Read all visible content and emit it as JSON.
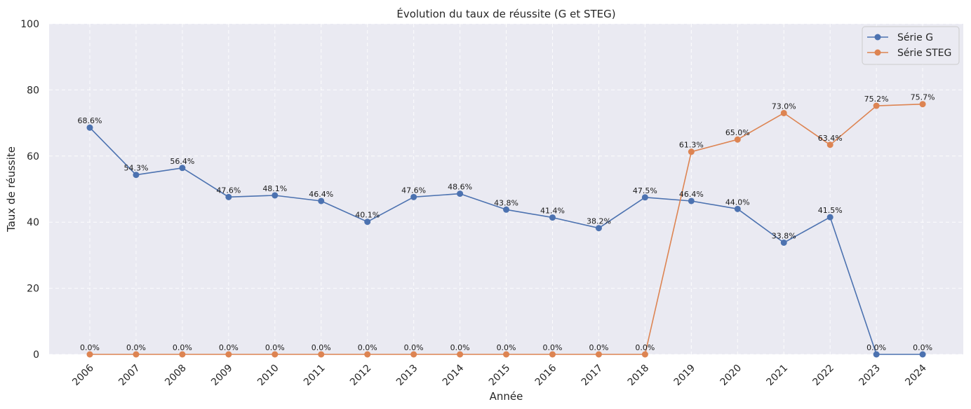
{
  "chart_data": {
    "type": "line",
    "title": "Évolution du taux de réussite (G et STEG)",
    "xlabel": "Année",
    "ylabel": "Taux de réussite",
    "ylim": [
      0,
      100
    ],
    "yticks": [
      "0",
      "20",
      "40",
      "60",
      "80",
      "100"
    ],
    "grid": true,
    "legend_position": "top-right",
    "categories": [
      "2006",
      "2007",
      "2008",
      "2009",
      "2010",
      "2011",
      "2012",
      "2013",
      "2014",
      "2015",
      "2016",
      "2017",
      "2018",
      "2019",
      "2020",
      "2021",
      "2022",
      "2023",
      "2024"
    ],
    "series": [
      {
        "name": "Série G",
        "color": "#4c72b0",
        "values": [
          68.6,
          54.3,
          56.4,
          47.6,
          48.1,
          46.4,
          40.1,
          47.6,
          48.6,
          43.8,
          41.4,
          38.2,
          47.5,
          46.4,
          44.0,
          33.8,
          41.5,
          0.0,
          0.0
        ],
        "labels": [
          "68.6%",
          "54.3%",
          "56.4%",
          "47.6%",
          "48.1%",
          "46.4%",
          "40.1%",
          "47.6%",
          "48.6%",
          "43.8%",
          "41.4%",
          "38.2%",
          "47.5%",
          "46.4%",
          "44.0%",
          "33.8%",
          "41.5%",
          "0.0%",
          "0.0%"
        ]
      },
      {
        "name": "Série STEG",
        "color": "#dd8452",
        "values": [
          0.0,
          0.0,
          0.0,
          0.0,
          0.0,
          0.0,
          0.0,
          0.0,
          0.0,
          0.0,
          0.0,
          0.0,
          0.0,
          61.3,
          65.0,
          73.0,
          63.4,
          75.2,
          75.7
        ],
        "labels": [
          "0.0%",
          "0.0%",
          "0.0%",
          "0.0%",
          "0.0%",
          "0.0%",
          "0.0%",
          "0.0%",
          "0.0%",
          "0.0%",
          "0.0%",
          "0.0%",
          "0.0%",
          "61.3%",
          "65.0%",
          "73.0%",
          "63.4%",
          "75.2%",
          "75.7%"
        ]
      }
    ]
  }
}
